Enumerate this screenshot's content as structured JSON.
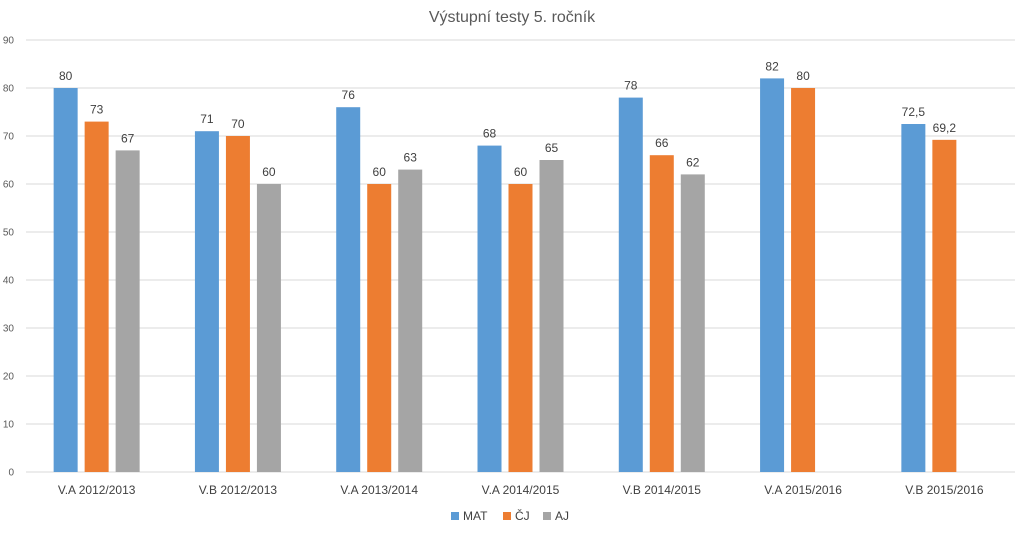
{
  "chart_data": {
    "type": "bar",
    "title": "Výstupní testy 5. ročník",
    "xlabel": "",
    "ylabel": "",
    "ylim": [
      0,
      90
    ],
    "yticks": [
      0,
      10,
      20,
      30,
      40,
      50,
      60,
      70,
      80,
      90
    ],
    "grid": true,
    "legend_position": "bottom",
    "categories": [
      "V.A 2012/2013",
      "V.B 2012/2013",
      "V.A 2013/2014",
      "V.A 2014/2015",
      "V.B 2014/2015",
      "V.A 2015/2016",
      "V.B 2015/2016"
    ],
    "series": [
      {
        "name": "MAT",
        "color": "#5b9bd5",
        "values": [
          80,
          71,
          76,
          68,
          78,
          82,
          72.5
        ],
        "labels": [
          "80",
          "71",
          "76",
          "68",
          "78",
          "82",
          "72,5"
        ]
      },
      {
        "name": "ČJ",
        "color": "#ed7d31",
        "values": [
          73,
          70,
          60,
          60,
          66,
          80,
          69.2
        ],
        "labels": [
          "73",
          "70",
          "60",
          "60",
          "66",
          "80",
          "69,2"
        ]
      },
      {
        "name": "AJ",
        "color": "#a5a5a5",
        "values": [
          67,
          60,
          63,
          65,
          62,
          null,
          null
        ],
        "labels": [
          "67",
          "60",
          "63",
          "65",
          "62",
          null,
          null
        ]
      }
    ]
  }
}
